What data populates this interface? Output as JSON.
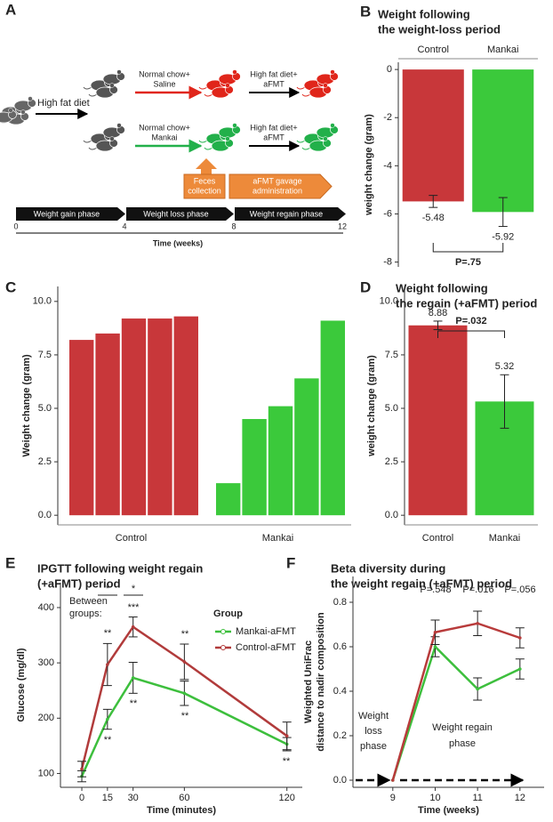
{
  "diagram": {
    "label": "A",
    "first_diet": "High fat diet",
    "rows": [
      {
        "treatment": [
          "Normal chow+",
          "Saline"
        ],
        "regain": [
          "High fat diet+",
          "aFMT"
        ]
      },
      {
        "treatment": [
          "Normal chow+",
          "Mankai"
        ],
        "regain": [
          "High fat diet+",
          "aFMT"
        ]
      }
    ],
    "feces": [
      "Feces",
      "collection"
    ],
    "gavage": [
      "aFMT gavage",
      "administration"
    ],
    "phases": [
      "Weight gain phase",
      "Weight loss phase",
      "Weight regain phase"
    ],
    "timeline_ticks": [
      0,
      4,
      8,
      12
    ],
    "timeline_label": "Time (weeks)"
  },
  "chart_data": [
    {
      "type": "bar",
      "label": "B",
      "title": [
        "Weight following",
        "the weight-loss period"
      ],
      "y_label": "weight change (gram)",
      "categories": [
        "Control",
        "Mankai"
      ],
      "values": [
        -5.48,
        -5.92
      ],
      "errors": [
        0.25,
        0.6
      ],
      "colors": [
        "#c8373a",
        "#3bc93b"
      ],
      "ylim": [
        -8.2,
        0.3
      ],
      "yticks": [
        0,
        -2,
        -4,
        -6,
        -8
      ],
      "category_axis": "top",
      "annotation": "P=.75"
    },
    {
      "type": "bar",
      "label": "C",
      "y_label": "Weight change (gram)",
      "groups": [
        {
          "name": "Control",
          "color": "#c8373a",
          "values": [
            8.2,
            8.5,
            9.2,
            9.2,
            9.3
          ]
        },
        {
          "name": "Mankai",
          "color": "#3bc93b",
          "values": [
            1.5,
            4.5,
            5.1,
            6.4,
            9.1
          ]
        }
      ],
      "ylim": [
        -0.45,
        10.7
      ],
      "yticks": [
        {
          "value": 0,
          "label": "0.0"
        },
        2.5,
        {
          "value": 5,
          "label": "5.0"
        },
        7.5,
        {
          "value": 10,
          "label": "10.0"
        }
      ]
    },
    {
      "type": "bar",
      "label": "D",
      "title": [
        "Weight following",
        "the regain (+aFMT) period"
      ],
      "y_label": "weight change (gram)",
      "categories": [
        "Control",
        "Mankai"
      ],
      "values": [
        8.88,
        5.32
      ],
      "errors": [
        0.2,
        1.25
      ],
      "colors": [
        "#c8373a",
        "#3bc93b"
      ],
      "ylim": [
        -0.45,
        10.7
      ],
      "yticks": [
        {
          "value": 0,
          "label": "0.0"
        },
        2.5,
        {
          "value": 5,
          "label": "5.0"
        },
        7.5,
        {
          "value": 10,
          "label": "10.0"
        }
      ],
      "category_axis": "bottom",
      "annotation": "P=.032"
    },
    {
      "type": "line",
      "label": "E",
      "title": [
        "IPGTT following weight regain",
        "(+aFMT) period"
      ],
      "x_label": "Time (minutes)",
      "y_label": "Glucose (mg/dl)",
      "x": [
        0,
        15,
        30,
        60,
        120
      ],
      "xlim": [
        -12.5,
        129
      ],
      "xticks": [
        0,
        15,
        30,
        60,
        120
      ],
      "ylim": [
        75,
        445
      ],
      "yticks": [
        100,
        200,
        300,
        400
      ],
      "legend_title": "Group",
      "legend": "top-right",
      "series": [
        {
          "name": "Mankai-aFMT",
          "color": "#3dbf3d",
          "values": [
            95,
            198,
            273,
            245,
            153
          ],
          "errors": [
            10,
            18,
            28,
            22,
            12
          ]
        },
        {
          "name": "Control-aFMT",
          "color": "#b13b3b",
          "values": [
            108,
            297,
            365,
            302,
            168
          ],
          "errors": [
            14,
            38,
            18,
            32,
            25
          ]
        }
      ],
      "annotations": [
        "Between",
        "groups:",
        "*",
        "*",
        "**",
        "***",
        "**",
        "**",
        "**",
        "**",
        "**"
      ]
    },
    {
      "type": "line",
      "label": "F",
      "title": [
        "Beta diversity during",
        "the weight regain (+aFMT) period"
      ],
      "x_label": "Time (weeks)",
      "y_label": [
        "Weighted UniFrac",
        "distance to nadir composition"
      ],
      "x": [
        9,
        10,
        11,
        12
      ],
      "xlim": [
        8.06,
        12.57
      ],
      "xticks": [
        9,
        10,
        11,
        12
      ],
      "ylim": [
        -0.032,
        0.916
      ],
      "yticks": [
        {
          "value": 0,
          "label": "0.0"
        },
        0.2,
        0.4,
        0.6,
        0.8
      ],
      "series": [
        {
          "color": "#3dbf3d",
          "values": [
            0,
            0.6,
            0.41,
            0.5
          ],
          "errors": [
            null,
            0.045,
            0.05,
            0.045
          ]
        },
        {
          "color": "#b83b3b",
          "values": [
            0,
            0.665,
            0.705,
            0.64
          ],
          "errors": [
            null,
            0.055,
            0.055,
            0.045
          ]
        }
      ],
      "annotations": [
        "P=.548",
        "P=.016",
        "P=.056",
        "Weight",
        "loss",
        "phase",
        "Weight regain",
        "phase"
      ]
    }
  ]
}
